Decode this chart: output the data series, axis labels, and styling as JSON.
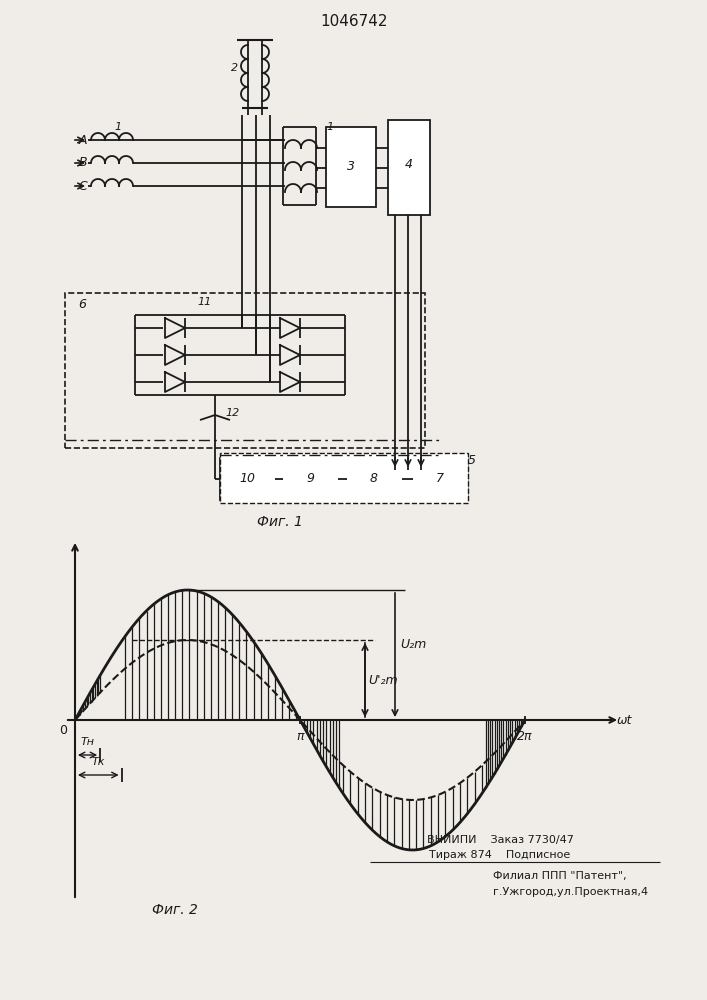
{
  "title": "1046742",
  "fig1_label": "Фиг. 1",
  "fig2_label": "Фиг. 2",
  "background_color": "#f0ede8",
  "line_color": "#1a1a1a",
  "bottom_line1": "ВНИИПИ    Заказ 7730/47",
  "bottom_line2": "Тираж 874    Подписное",
  "bottom_line3": "Филиал ППП \"Патент\",",
  "bottom_line4": "г.Ужгород,ул.Проектная,4"
}
